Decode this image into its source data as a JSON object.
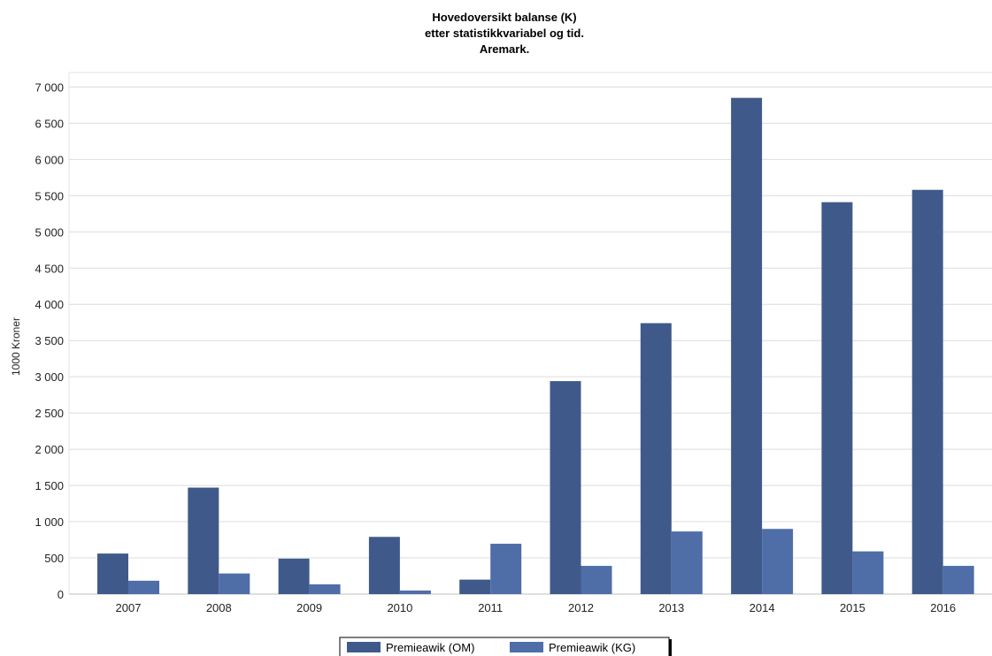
{
  "chart_data": {
    "type": "bar",
    "title": [
      "Hovedoversikt balanse (K)",
      "etter statistikkvariabel og tid.",
      "Aremark."
    ],
    "ylabel": "1000 Kroner",
    "xlabel": "",
    "ylim": [
      0,
      7000
    ],
    "yticks": [
      0,
      500,
      1000,
      1500,
      2000,
      2500,
      3000,
      3500,
      4000,
      4500,
      5000,
      5500,
      6000,
      6500,
      7000
    ],
    "ytick_labels": [
      "0",
      "500",
      "1 000",
      "1 500",
      "2 000",
      "2 500",
      "3 000",
      "3 500",
      "4 000",
      "4 500",
      "5 000",
      "5 500",
      "6 000",
      "6 500",
      "7 000"
    ],
    "grid": true,
    "legend_position": "bottom-center",
    "categories": [
      "2007",
      "2008",
      "2009",
      "2010",
      "2011",
      "2012",
      "2013",
      "2014",
      "2015",
      "2016"
    ],
    "series": [
      {
        "name": "Premieawik (OM)",
        "color": "#3f5a8a",
        "values": [
          560,
          1470,
          490,
          790,
          200,
          2940,
          3740,
          6850,
          5410,
          5580
        ]
      },
      {
        "name": "Premieawik (KG)",
        "color": "#4f6ea8",
        "values": [
          185,
          285,
          135,
          50,
          695,
          390,
          865,
          900,
          590,
          390
        ]
      }
    ]
  }
}
